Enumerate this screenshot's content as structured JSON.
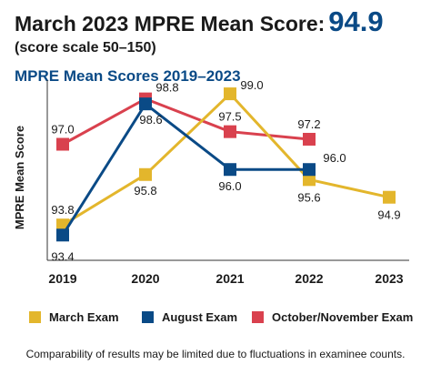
{
  "header": {
    "headline": "March 2023 MPRE Mean Score:",
    "headline_score": "94.9",
    "scale_note": "(score scale 50–150)",
    "chart_title": "MPRE Mean Scores 2019–2023"
  },
  "footnote": "Comparability of results may be limited due to fluctuations in examinee counts.",
  "colors": {
    "march": "#e3b62c",
    "august": "#0a4a86",
    "october": "#d9414e",
    "title_blue": "#0a4a86"
  },
  "chart_data": {
    "type": "line",
    "ylabel": "MPRE Mean Score",
    "xlabel": "",
    "categories": [
      "2019",
      "2020",
      "2021",
      "2022",
      "2023"
    ],
    "ylim": [
      92.4,
      99.4
    ],
    "grid": false,
    "legend_position": "bottom",
    "series": [
      {
        "name": "March Exam",
        "color": "#e3b62c",
        "values": [
          93.8,
          95.8,
          99.0,
          95.6,
          94.9
        ]
      },
      {
        "name": "August Exam",
        "color": "#0a4a86",
        "values": [
          93.4,
          98.6,
          96.0,
          96.0,
          null
        ]
      },
      {
        "name": "October/November Exam",
        "color": "#d9414e",
        "values": [
          97.0,
          98.8,
          97.5,
          97.2,
          null
        ]
      }
    ]
  }
}
